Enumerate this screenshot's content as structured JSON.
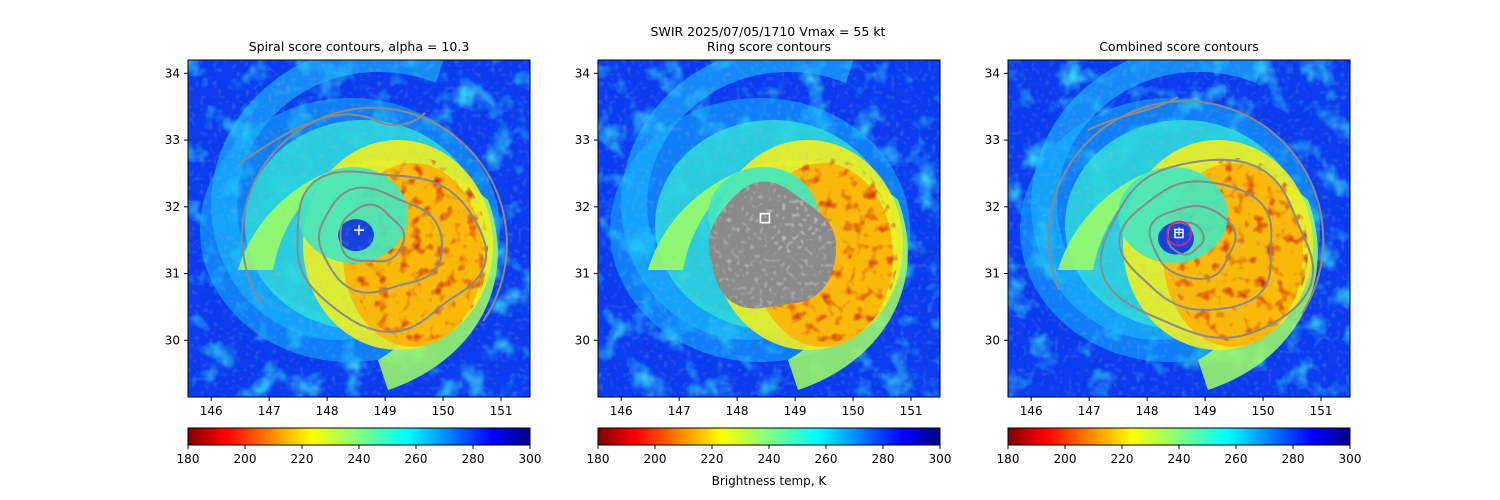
{
  "figure": {
    "suptitle_line1": "SWIR  2025/07/05/1710    Vmax = 55 kt",
    "colorbar_label": "Brightness temp, K"
  },
  "colors": {
    "contour_gray": "#8a8a8a",
    "center_circle": "#d0208a",
    "marker_white": "#ffffff"
  },
  "chart_data": [
    {
      "type": "heatmap",
      "title": "Spiral score contours, alpha = 10.3",
      "x_ticks": [
        "146",
        "147",
        "148",
        "149",
        "150",
        "151"
      ],
      "y_ticks": [
        "30",
        "31",
        "32",
        "33",
        "34"
      ],
      "xlim": [
        145.6,
        151.5
      ],
      "ylim": [
        29.15,
        34.2
      ],
      "storm_center": [
        148.55,
        31.65
      ],
      "center_marker": "plus",
      "overlay": "spiral-contours",
      "colorbar": {
        "ticks": [
          "180",
          "200",
          "220",
          "240",
          "260",
          "280",
          "300"
        ],
        "range": [
          180,
          300
        ],
        "colormap": "jet_r"
      }
    },
    {
      "type": "heatmap",
      "title": "Ring score contours",
      "x_ticks": [
        "146",
        "147",
        "148",
        "149",
        "150",
        "151"
      ],
      "y_ticks": [
        "30",
        "31",
        "32",
        "33",
        "34"
      ],
      "xlim": [
        145.6,
        151.5
      ],
      "ylim": [
        29.15,
        34.2
      ],
      "storm_center": [
        148.48,
        31.83
      ],
      "center_marker": "square",
      "overlay": "ring-score-disk",
      "colorbar": {
        "ticks": [
          "180",
          "200",
          "220",
          "240",
          "260",
          "280",
          "300"
        ],
        "range": [
          180,
          300
        ],
        "colormap": "jet_r"
      }
    },
    {
      "type": "heatmap",
      "title": "Combined score contours",
      "x_ticks": [
        "146",
        "147",
        "148",
        "149",
        "150",
        "151"
      ],
      "y_ticks": [
        "30",
        "31",
        "32",
        "33",
        "34"
      ],
      "xlim": [
        145.6,
        151.5
      ],
      "ylim": [
        29.15,
        34.2
      ],
      "storm_center": [
        148.55,
        31.6
      ],
      "center_marker": "square-plus-circle",
      "overlay": "combined-contours",
      "colorbar": {
        "ticks": [
          "180",
          "200",
          "220",
          "240",
          "260",
          "280",
          "300"
        ],
        "range": [
          180,
          300
        ],
        "colormap": "jet_r"
      }
    }
  ]
}
